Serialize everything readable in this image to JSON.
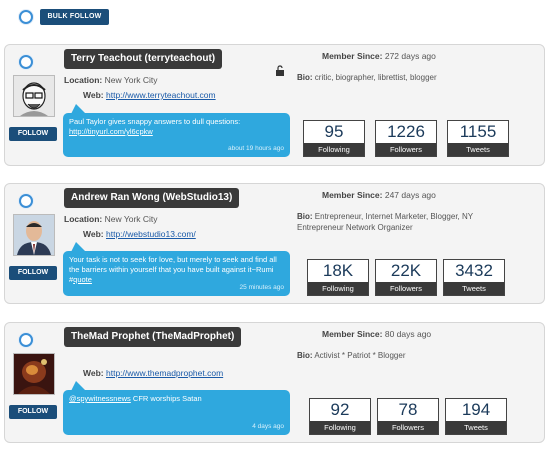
{
  "toolbar": {
    "bulk_follow_label": "BULK FOLLOW"
  },
  "labels": {
    "location": "Location:",
    "web": "Web:",
    "member_since": "Member Since:",
    "bio": "Bio:",
    "follow": "FOLLOW",
    "following": "Following",
    "followers": "Followers",
    "tweets": "Tweets"
  },
  "colors": {
    "accent": "#1b4e7a",
    "bubble": "#2fa8de",
    "stat_bar": "#3a3a3a"
  },
  "users": [
    {
      "name": "Terry Teachout (terryteachout)",
      "member_since": "272 days ago",
      "location": "New York City",
      "web": "http://www.terryteachout.com",
      "bio": "critic, biographer, librettist, blogger",
      "tweet_text": "Paul Taylor gives snappy answers to dull questions:",
      "tweet_link": "http://tinyurl.com/yl6cpkw",
      "tweet_time": "about 19 hours ago",
      "following": "95",
      "followers": "1226",
      "tweets": "1155"
    },
    {
      "name": "Andrew Ran Wong (WebStudio13)",
      "member_since": "247 days ago",
      "location": "New York City",
      "web": "http://webstudio13.com/",
      "bio": "Entrepreneur, Internet Marketer, Blogger, NY Entrepreneur Network Organizer",
      "tweet_text": "Your task is not to seek for love, but merely to seek and find all the barriers within yourself that you have built against it~Rumi #",
      "tweet_link": "quote",
      "tweet_time": "25 minutes ago",
      "following": "18K",
      "followers": "22K",
      "tweets": "3432"
    },
    {
      "name": "TheMad Prophet (TheMadProphet)",
      "member_since": "80 days ago",
      "web": "http://www.themadprophet.com",
      "bio": "Activist * Patriot * Blogger",
      "tweet_link": "@spywitnessnews",
      "tweet_text": "CFR worships Satan",
      "tweet_time": "4 days ago",
      "following": "92",
      "followers": "78",
      "tweets": "194"
    }
  ]
}
